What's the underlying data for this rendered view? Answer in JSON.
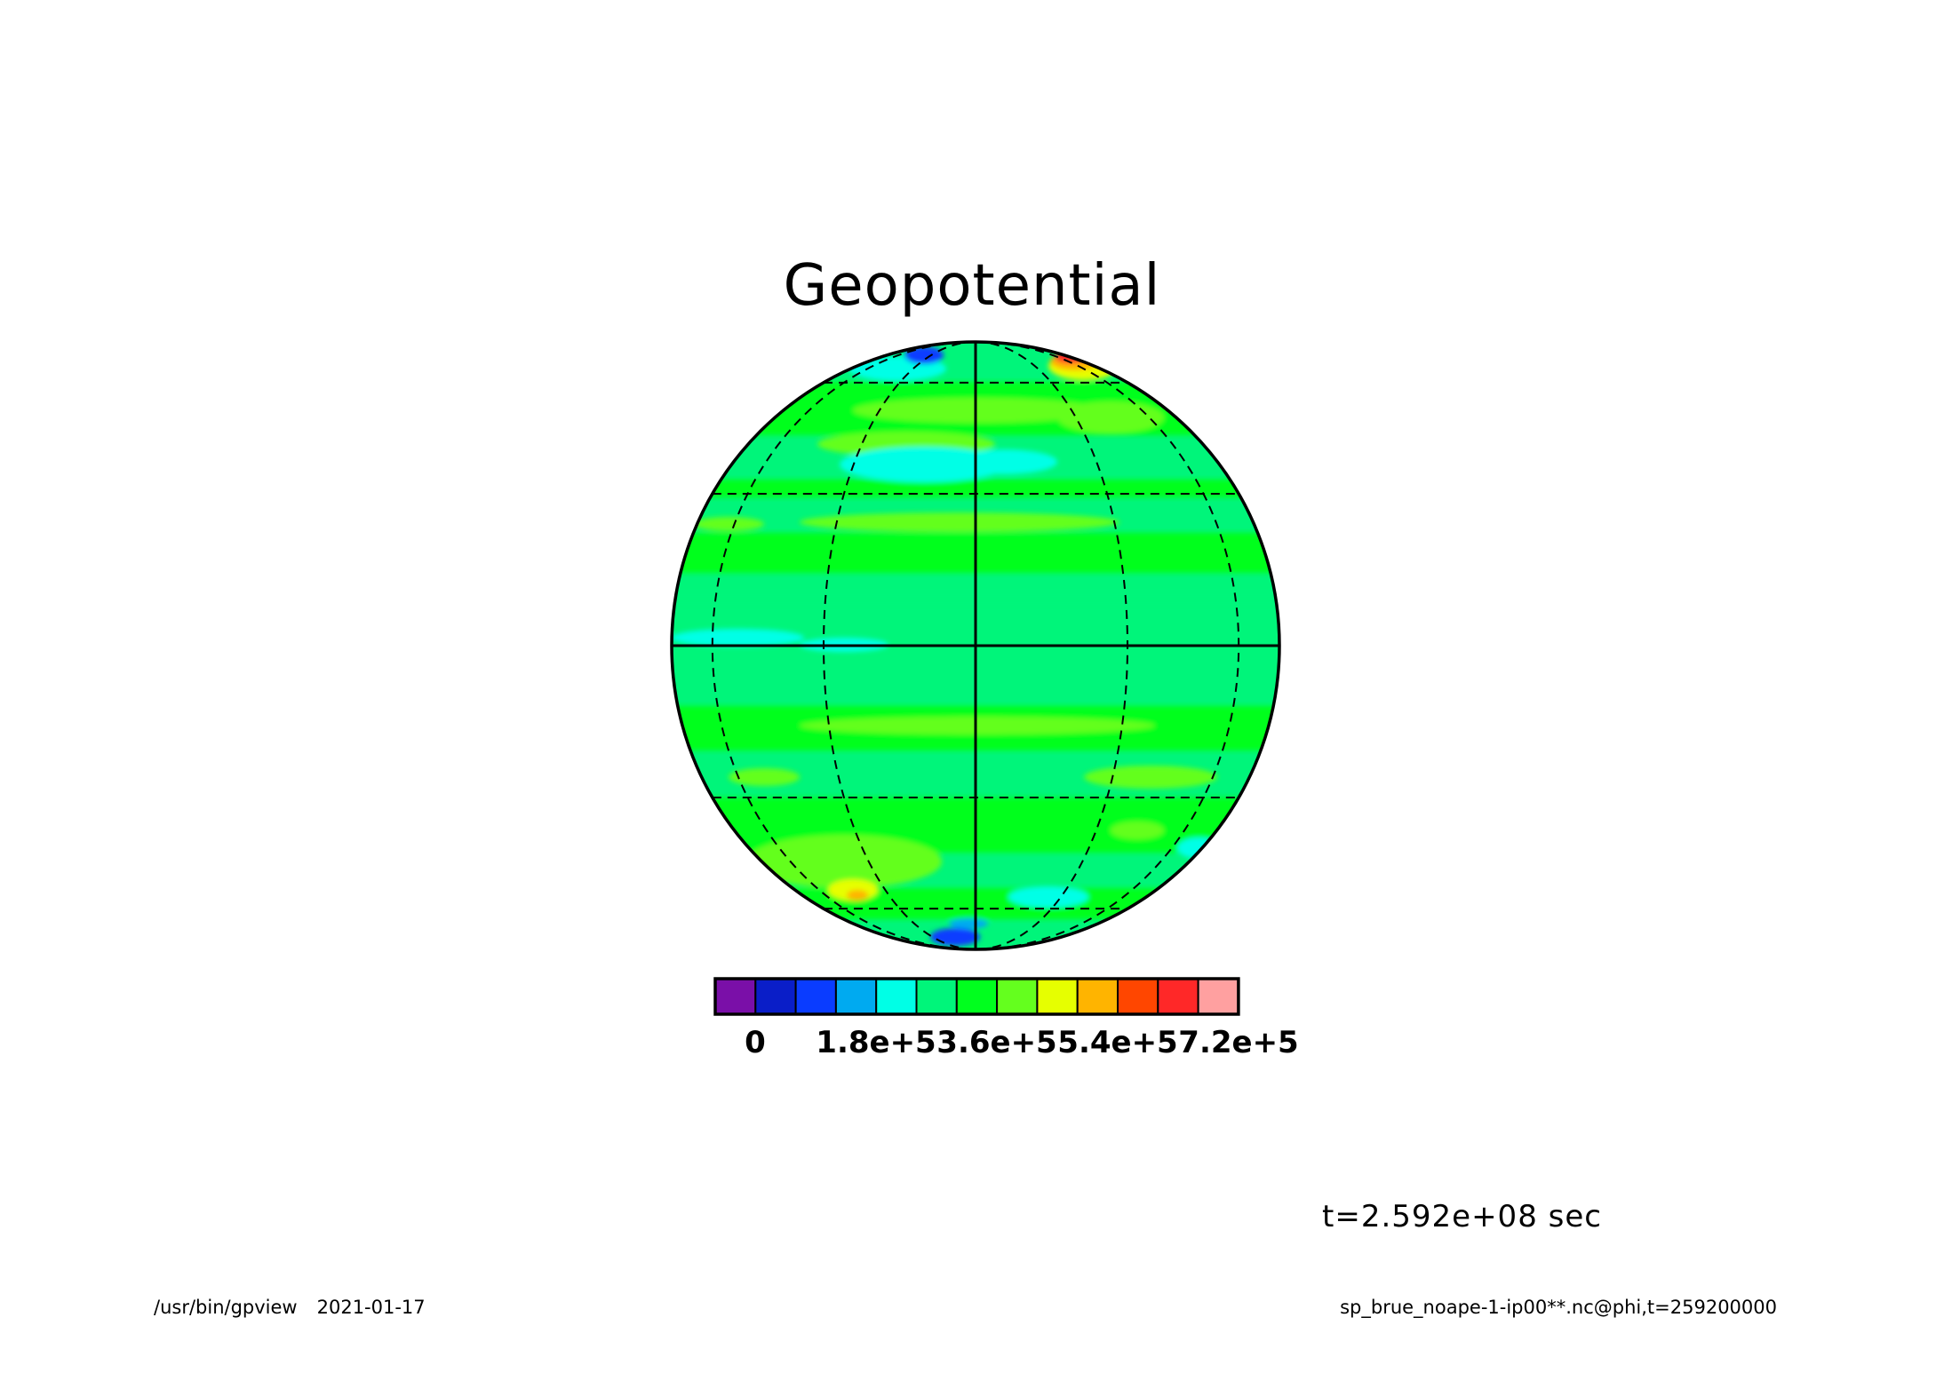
{
  "title": "Geopotential",
  "time_label": "t=2.592e+08 sec",
  "footer": {
    "program": "/usr/bin/gpview",
    "date": "2021-01-17",
    "source": "sp_brue_noape-1-ip00**.nc@phi,t=259200000"
  },
  "colorbar": {
    "colors": [
      "#7a0fa8",
      "#0a1ec8",
      "#0a3cff",
      "#00aaf0",
      "#00ffe6",
      "#00f57a",
      "#00ff1e",
      "#64ff1e",
      "#e6ff00",
      "#ffb400",
      "#ff4600",
      "#ff2828",
      "#ffa0a0"
    ],
    "tick_labels": [
      "0",
      "1.8e+5",
      "3.6e+5",
      "5.4e+5",
      "7.2e+5"
    ]
  },
  "map": {
    "projection": "orthographic",
    "background_color": "#00f57a",
    "graticule": {
      "parallels_deg": [
        -60,
        -30,
        0,
        30,
        60
      ],
      "meridians_deg": [
        -90,
        -60,
        -30,
        0,
        30,
        60,
        90
      ]
    }
  }
}
